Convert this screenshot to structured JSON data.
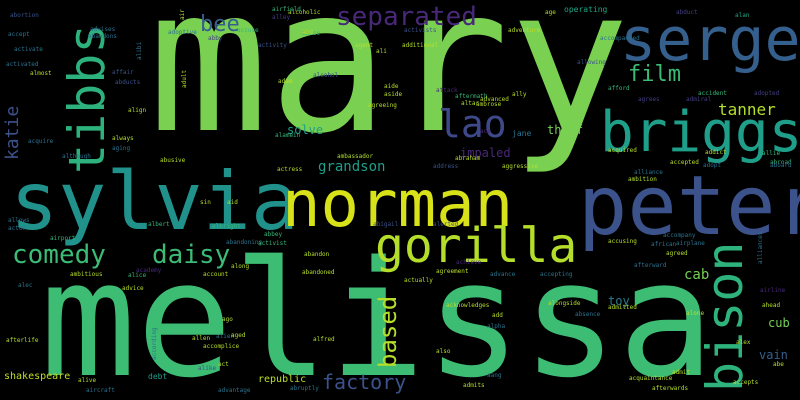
{
  "words": {
    "mary": "mary",
    "melissa": "melissa",
    "sylvia": "sylvia",
    "norman": "norman",
    "peter": "peter",
    "briggs": "briggs",
    "sergei": "sergei",
    "tibbs": "tibbs",
    "gorilla": "gorilla",
    "bison": "bison",
    "separated": "separated",
    "lao": "lao",
    "comedy": "comedy",
    "daisy": "daisy",
    "film": "film",
    "bee": "bee",
    "based": "based",
    "factory": "factory",
    "katie": "katie",
    "tanner": "tanner",
    "grandson": "grandson",
    "thief": "thief",
    "solve": "solve",
    "impaled": "impaled",
    "cab": "cab",
    "cub": "cub",
    "vain": "vain",
    "toy": "toy",
    "shakespeare": "shakespeare",
    "republic": "republic",
    "jane": "jane",
    "operating": "operating",
    "alan": "alan",
    "abduct": "abduct",
    "abortion": "abortion",
    "alcoholic": "alcoholic",
    "age": "age",
    "adventure": "adventure",
    "alcohol": "alcohol",
    "agent": "agent",
    "additional": "additional",
    "activity": "activity",
    "activists": "activists",
    "abuse": "abuse",
    "accuse": "accuse",
    "abby": "abby",
    "aftermath": "aftermath",
    "alley": "alley",
    "airfield": "airfield",
    "adopted": "adopted",
    "admiral": "admiral",
    "accident": "accident",
    "afford": "afford",
    "agrees": "agrees",
    "allowing": "allowing",
    "accompanied": "accompanied",
    "acquire": "acquire",
    "always": "always",
    "aging": "aging",
    "abroad": "abroad",
    "accepted": "accepted",
    "ambition": "ambition",
    "alliance": "alliance",
    "affection": "affection",
    "adopt": "adopt",
    "accompany": "accompany",
    "african": "african",
    "airplane": "airplane",
    "agreed": "agreed",
    "accusing": "accusing",
    "afterward": "afterward",
    "ahead": "ahead",
    "alone": "alone",
    "admitted": "admitted",
    "alongside": "alongside",
    "absence": "absence",
    "alpha": "alpha",
    "acknowledges": "acknowledges",
    "agreement": "agreement",
    "advance": "advance",
    "accepting": "accepting",
    "alien": "alien",
    "allen": "allen",
    "aged": "aged",
    "alfred": "alfred",
    "account": "account",
    "along": "along",
    "advice": "advice",
    "abandoning": "abandoning",
    "abandoned": "abandoned",
    "abandon": "abandon",
    "airport": "airport",
    "alice": "alice",
    "albert": "albert",
    "albright": "albright",
    "abbey": "abbey",
    "activist": "activist",
    "alike": "alike",
    "alive": "alive",
    "advantage": "advantage",
    "abruptly": "abruptly",
    "aircraft": "aircraft",
    "afterlife": "afterlife",
    "accomplice": "accomplice",
    "act": "act",
    "debt": "debt",
    "also": "also",
    "admits": "admits",
    "acquaintance": "acquaintance",
    "afterwards": "afterwards",
    "accepts": "accepts",
    "alex": "alex",
    "admit": "admit",
    "abe": "abe",
    "aid": "aid",
    "sin": "sin",
    "abigail": "abigail",
    "alerted": "alerted",
    "address": "address",
    "aggressive": "aggressive",
    "abraham": "abraham",
    "ambassador": "ambassador",
    "alamein": "alamein",
    "abusive": "abusive",
    "actress": "actress",
    "although": "although",
    "acquired": "acquired",
    "addict": "addict",
    "allie": "allie",
    "advanced": "advanced",
    "ally": "ally",
    "ambrose": "ambrose",
    "altar": "altar",
    "aside": "aside",
    "agreeing": "agreeing",
    "adam": "adam",
    "ali": "ali",
    "abu": "abu",
    "affair": "affair",
    "abducts": "abducts",
    "activated": "activated",
    "activate": "activate",
    "accept": "accept",
    "abandons": "abandons",
    "almost": "almost",
    "alibi": "alibi",
    "advises": "advises",
    "adoptive": "adoptive",
    "air": "air",
    "align": "align",
    "attack": "attack",
    "achieve": "achieve",
    "actually": "actually",
    "ace": "ace",
    "add": "add",
    "airline": "airline",
    "aboard": "aboard",
    "alliances": "alliances",
    "alec": "alec",
    "actor": "actor",
    "allows": "allows",
    "ambitious": "ambitious",
    "academy": "academy",
    "according": "according",
    "ago": "ago",
    "aang": "aang",
    "aide": "aide",
    "adult": "adult"
  }
}
